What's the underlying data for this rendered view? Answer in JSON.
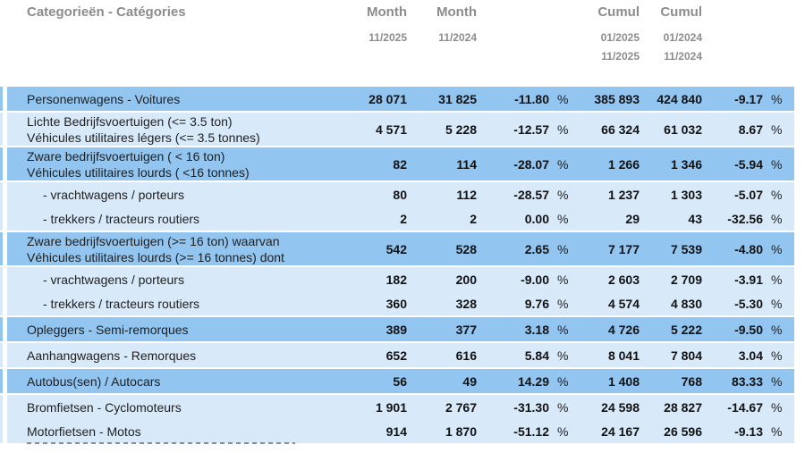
{
  "header": {
    "category_label": "Categorieën - Catégories",
    "month_col_1": {
      "title": "Month",
      "dates": [
        "11/2025"
      ]
    },
    "month_col_2": {
      "title": "Month",
      "dates": [
        "11/2024"
      ]
    },
    "cumul_col_1": {
      "title": "Cumul",
      "dates": [
        "01/2025",
        "11/2025"
      ]
    },
    "cumul_col_2": {
      "title": "Cumul",
      "dates": [
        "01/2024",
        "11/2024"
      ]
    }
  },
  "percent_sign": "%",
  "colors": {
    "row_dark": "#92c5f0",
    "row_light": "#d8e9fa",
    "header_text": "#8c8c8c",
    "body_text": "#1f1f1f"
  },
  "rows": [
    {
      "label": [
        "Personenwagens - Voitures"
      ],
      "indent": false,
      "shade": "dark",
      "gap_after": true,
      "values": [
        "28 071",
        "31 825",
        "-11.80",
        "385 893",
        "424 840",
        "-9.17"
      ]
    },
    {
      "label": [
        "Lichte Bedrijfsvoertuigen (<= 3.5 ton)",
        "Véhicules utilitaires légers (<= 3.5 tonnes)"
      ],
      "indent": false,
      "shade": "light",
      "gap_after": true,
      "values": [
        "4 571",
        "5 228",
        "-12.57",
        "66 324",
        "61 032",
        "8.67"
      ]
    },
    {
      "label": [
        "Zware bedrijfsvoertuigen ( < 16 ton)",
        "Véhicules utilitaires lourds ( <16 tonnes)"
      ],
      "indent": false,
      "shade": "dark",
      "gap_after": true,
      "values": [
        "82",
        "114",
        "-28.07",
        "1 266",
        "1 346",
        "-5.94"
      ]
    },
    {
      "label": [
        "- vrachtwagens / porteurs"
      ],
      "indent": true,
      "shade": "light",
      "gap_after": false,
      "values": [
        "80",
        "112",
        "-28.57",
        "1 237",
        "1 303",
        "-5.07"
      ]
    },
    {
      "label": [
        "- trekkers / tracteurs routiers"
      ],
      "indent": true,
      "shade": "light",
      "gap_after": true,
      "values": [
        "2",
        "2",
        "0.00",
        "29",
        "43",
        "-32.56"
      ]
    },
    {
      "label": [
        "Zware bedrijfsvoertuigen (>= 16 ton) waarvan",
        "Véhicules utilitaires lourds (>= 16 tonnes) dont"
      ],
      "indent": false,
      "shade": "dark",
      "gap_after": true,
      "values": [
        "542",
        "528",
        "2.65",
        "7 177",
        "7 539",
        "-4.80"
      ]
    },
    {
      "label": [
        "- vrachtwagens / porteurs"
      ],
      "indent": true,
      "shade": "light",
      "gap_after": false,
      "values": [
        "182",
        "200",
        "-9.00",
        "2 603",
        "2 709",
        "-3.91"
      ]
    },
    {
      "label": [
        "- trekkers / tracteurs routiers"
      ],
      "indent": true,
      "shade": "light",
      "gap_after": true,
      "values": [
        "360",
        "328",
        "9.76",
        "4 574",
        "4 830",
        "-5.30"
      ]
    },
    {
      "label": [
        "Opleggers - Semi-remorques"
      ],
      "indent": false,
      "shade": "dark",
      "gap_after": true,
      "values": [
        "389",
        "377",
        "3.18",
        "4 726",
        "5 222",
        "-9.50"
      ]
    },
    {
      "label": [
        "Aanhangwagens - Remorques"
      ],
      "indent": false,
      "shade": "light",
      "gap_after": true,
      "values": [
        "652",
        "616",
        "5.84",
        "8 041",
        "7 804",
        "3.04"
      ]
    },
    {
      "label": [
        "Autobus(sen) / Autocars"
      ],
      "indent": false,
      "shade": "dark",
      "gap_after": true,
      "values": [
        "56",
        "49",
        "14.29",
        "1 408",
        "768",
        "83.33"
      ]
    },
    {
      "label": [
        "Bromfietsen - Cyclomoteurs"
      ],
      "indent": false,
      "shade": "light",
      "gap_after": false,
      "values": [
        "1 901",
        "2 767",
        "-31.30",
        "24 598",
        "28 827",
        "-14.67"
      ]
    },
    {
      "label": [
        "Motorfietsen - Motos"
      ],
      "indent": false,
      "shade": "light",
      "gap_after": false,
      "values": [
        "914",
        "1 870",
        "-51.12",
        "24 167",
        "26 596",
        "-9.13"
      ]
    }
  ]
}
